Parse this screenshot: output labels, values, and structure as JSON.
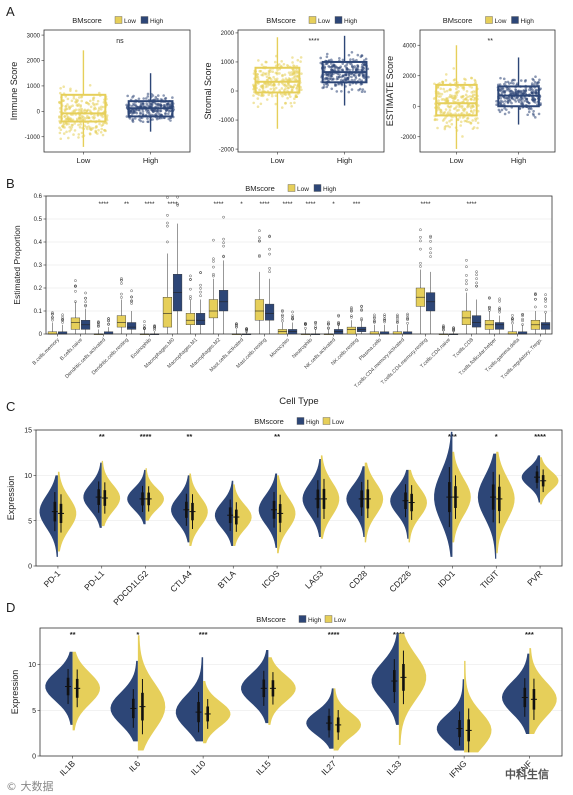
{
  "colors": {
    "low": "#e6cf5a",
    "high": "#2d4677",
    "axis": "#222222",
    "grid": "#e5e5e5"
  },
  "panel_labels": [
    "A",
    "B",
    "C",
    "D"
  ],
  "legend_low": "Low",
  "legend_high": "High",
  "legend_title": "BMscore",
  "watermark_left": "© 大数据",
  "watermark_right": "中科生信",
  "chart_data": [
    {
      "type": "box",
      "panel": "A",
      "ylabel": "Immune Score",
      "categories": [
        "Low",
        "High"
      ],
      "significance": "ns",
      "ylim": [
        -1600,
        3200
      ],
      "yticks": [
        -1000,
        0,
        1000,
        2000,
        3000
      ],
      "series": [
        {
          "name": "Low",
          "q1": -400,
          "median": -80,
          "q3": 650,
          "whisker_low": -1400,
          "whisker_high": 2400
        },
        {
          "name": "High",
          "q1": -200,
          "median": 120,
          "q3": 400,
          "whisker_low": -800,
          "whisker_high": 1500
        }
      ]
    },
    {
      "type": "box",
      "panel": "A",
      "ylabel": "Stromal Score",
      "categories": [
        "Low",
        "High"
      ],
      "significance": "****",
      "ylim": [
        -2100,
        2100
      ],
      "yticks": [
        -2000,
        -1000,
        0,
        1000,
        2000
      ],
      "series": [
        {
          "name": "Low",
          "q1": -50,
          "median": 320,
          "q3": 800,
          "whisker_low": -1300,
          "whisker_high": 1850
        },
        {
          "name": "High",
          "q1": 300,
          "median": 650,
          "q3": 1000,
          "whisker_low": -500,
          "whisker_high": 1900
        }
      ]
    },
    {
      "type": "box",
      "panel": "A",
      "ylabel": "ESTIMATE Score",
      "categories": [
        "Low",
        "High"
      ],
      "significance": "**",
      "ylim": [
        -3000,
        5000
      ],
      "yticks": [
        -2000,
        0,
        2000,
        4000
      ],
      "series": [
        {
          "name": "Low",
          "q1": -600,
          "median": 200,
          "q3": 1400,
          "whisker_low": -2800,
          "whisker_high": 4000
        },
        {
          "name": "High",
          "q1": 0,
          "median": 700,
          "q3": 1300,
          "whisker_low": -1200,
          "whisker_high": 3200
        }
      ]
    },
    {
      "type": "box",
      "panel": "B",
      "xlabel": "Cell Type",
      "ylabel": "Estimated Proportion",
      "ylim": [
        0,
        0.6
      ],
      "yticks": [
        0,
        0.1,
        0.2,
        0.3,
        0.4,
        0.5,
        0.6
      ],
      "categories": [
        "B.cells.memory",
        "B.cells.naive",
        "Dendritic.cells.activated",
        "Dendritic.cells.resting",
        "Eosinophils",
        "Macrophages.M0",
        "Macrophages.M1",
        "Macrophages.M2",
        "Mast.cells.activated",
        "Mast.cells.resting",
        "Monocytes",
        "Neutrophils",
        "NK.cells.activated",
        "NK.cells.resting",
        "Plasma.cells",
        "T.cells.CD4.memory.activated",
        "T.cells.CD4.memory.resting",
        "T.cells.CD4.naive",
        "T.cells.CD8",
        "T.cells.follicular.helper",
        "T.cells.gamma.delta",
        "T.cells.regulatory..Tregs."
      ],
      "significance": [
        "",
        "",
        "****",
        "**",
        "****",
        "****",
        "",
        "****",
        "*",
        "****",
        "****",
        "****",
        "*",
        "***",
        "",
        "",
        "****",
        "",
        "****",
        "",
        "",
        ""
      ],
      "series": [
        {
          "name": "Low",
          "q1": [
            0.0,
            0.02,
            0.0,
            0.03,
            0.0,
            0.03,
            0.04,
            0.07,
            0.0,
            0.06,
            0.0,
            0.0,
            0.0,
            0.0,
            0.0,
            0.0,
            0.12,
            0.0,
            0.04,
            0.02,
            0.0,
            0.02
          ],
          "median": [
            0.0,
            0.05,
            0.0,
            0.05,
            0.0,
            0.09,
            0.06,
            0.1,
            0.0,
            0.1,
            0.01,
            0.0,
            0.0,
            0.02,
            0.0,
            0.0,
            0.16,
            0.0,
            0.07,
            0.04,
            0.0,
            0.04
          ],
          "q3": [
            0.01,
            0.07,
            0.0,
            0.08,
            0.0,
            0.16,
            0.09,
            0.15,
            0.0,
            0.15,
            0.02,
            0.0,
            0.0,
            0.03,
            0.01,
            0.01,
            0.2,
            0.0,
            0.1,
            0.06,
            0.01,
            0.06
          ],
          "whisker_high": [
            0.05,
            0.14,
            0.02,
            0.15,
            0.02,
            0.35,
            0.15,
            0.24,
            0.02,
            0.27,
            0.05,
            0.02,
            0.02,
            0.06,
            0.04,
            0.04,
            0.28,
            0.01,
            0.18,
            0.1,
            0.04,
            0.1
          ]
        },
        {
          "name": "High",
          "q1": [
            0.0,
            0.02,
            0.0,
            0.02,
            0.0,
            0.1,
            0.04,
            0.1,
            0.0,
            0.06,
            0.0,
            0.0,
            0.0,
            0.01,
            0.0,
            0.0,
            0.1,
            0.0,
            0.03,
            0.02,
            0.0,
            0.02
          ],
          "median": [
            0.0,
            0.04,
            0.0,
            0.03,
            0.0,
            0.18,
            0.06,
            0.14,
            0.0,
            0.09,
            0.01,
            0.0,
            0.01,
            0.02,
            0.0,
            0.0,
            0.14,
            0.0,
            0.05,
            0.04,
            0.0,
            0.04
          ],
          "q3": [
            0.01,
            0.06,
            0.01,
            0.05,
            0.0,
            0.26,
            0.09,
            0.19,
            0.0,
            0.13,
            0.02,
            0.0,
            0.02,
            0.03,
            0.01,
            0.01,
            0.18,
            0.0,
            0.08,
            0.05,
            0.01,
            0.05
          ],
          "whisker_high": [
            0.04,
            0.11,
            0.03,
            0.1,
            0.01,
            0.48,
            0.15,
            0.32,
            0.01,
            0.24,
            0.05,
            0.02,
            0.04,
            0.06,
            0.04,
            0.04,
            0.27,
            0.01,
            0.15,
            0.08,
            0.04,
            0.09
          ]
        }
      ]
    },
    {
      "type": "violin",
      "panel": "C",
      "ylabel": "Expression",
      "ylim": [
        0,
        15
      ],
      "yticks": [
        0,
        5,
        10,
        15
      ],
      "categories": [
        "PD-1",
        "PD-L1",
        "PDCD1LG2",
        "CTLA4",
        "BTLA",
        "ICOS",
        "LAG3",
        "CD28",
        "CD226",
        "IDO1",
        "TIGIT",
        "PVR"
      ],
      "significance": [
        "",
        "**",
        "****",
        "**",
        "",
        "**",
        "",
        "",
        "",
        "***",
        "*",
        "****"
      ],
      "series": [
        {
          "name": "High",
          "median": [
            6.0,
            7.6,
            7.4,
            6.2,
            5.6,
            6.2,
            7.4,
            7.4,
            7.2,
            7.6,
            7.6,
            9.8
          ],
          "min": [
            1.0,
            4.2,
            4.6,
            2.6,
            2.2,
            2.0,
            3.2,
            3.2,
            3.0,
            1.0,
            0.8,
            7.0
          ],
          "max": [
            10.0,
            11.4,
            10.6,
            10.0,
            9.4,
            10.2,
            11.8,
            11.0,
            10.6,
            14.8,
            12.4,
            12.2
          ]
        },
        {
          "name": "Low",
          "median": [
            5.8,
            7.5,
            7.4,
            6.0,
            5.4,
            5.8,
            7.4,
            7.4,
            7.0,
            7.6,
            7.4,
            9.4
          ],
          "min": [
            1.6,
            4.4,
            5.0,
            2.2,
            2.2,
            1.4,
            3.0,
            2.6,
            2.6,
            2.6,
            1.4,
            6.8
          ],
          "max": [
            10.4,
            11.6,
            10.8,
            10.2,
            9.0,
            10.0,
            12.2,
            11.4,
            10.6,
            12.6,
            12.6,
            12.0
          ]
        }
      ]
    },
    {
      "type": "violin",
      "panel": "D",
      "ylabel": "Expression",
      "ylim": [
        0,
        14
      ],
      "yticks": [
        0,
        5,
        10
      ],
      "categories": [
        "IL1B",
        "IL6",
        "IL10",
        "IL15",
        "IL27",
        "IL33",
        "IFNG",
        "TNF"
      ],
      "significance": [
        "**",
        "*",
        "***",
        "",
        "****",
        "****",
        "",
        "***"
      ],
      "series": [
        {
          "name": "High",
          "median": [
            7.6,
            5.2,
            4.8,
            7.4,
            3.6,
            8.2,
            3.0,
            6.4
          ],
          "min": [
            3.4,
            1.6,
            1.6,
            3.6,
            0.8,
            3.4,
            0.6,
            2.4
          ],
          "max": [
            11.4,
            10.4,
            10.8,
            11.6,
            7.4,
            13.4,
            8.4,
            11.2
          ]
        },
        {
          "name": "Low",
          "median": [
            7.4,
            5.4,
            4.6,
            7.4,
            3.4,
            8.6,
            2.8,
            6.2
          ],
          "min": [
            2.8,
            0.6,
            1.4,
            3.4,
            0.6,
            1.2,
            0.4,
            2.4
          ],
          "max": [
            11.4,
            13.2,
            8.2,
            10.8,
            7.4,
            13.4,
            10.4,
            11.8
          ]
        }
      ]
    }
  ]
}
